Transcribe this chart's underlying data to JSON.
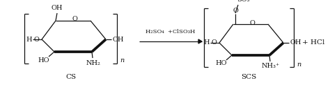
{
  "bg_color": "#ffffff",
  "fig_width": 4.74,
  "fig_height": 1.26,
  "dpi": 100,
  "cs_label": "CS",
  "scs_label": "SCS",
  "plus_hcl": "+ HCl",
  "line_color": "#111111",
  "text_color": "#111111"
}
